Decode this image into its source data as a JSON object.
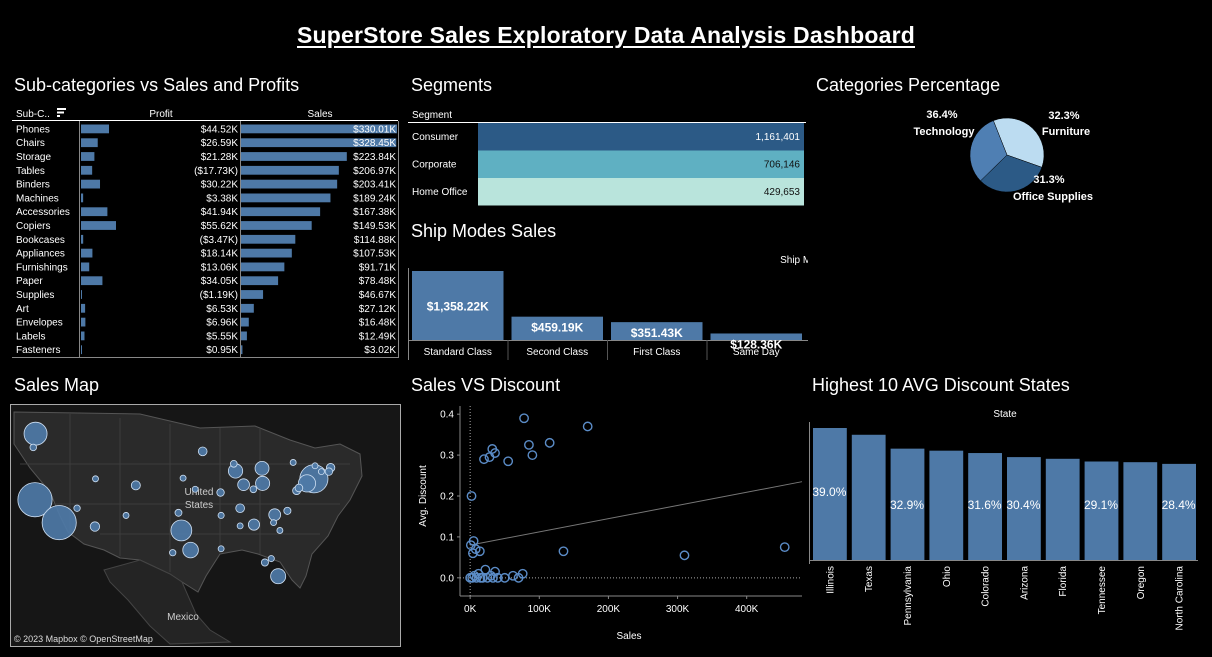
{
  "title": "SuperStore Sales Exploratory Data Analysis Dashboard",
  "panels": {
    "subcategories": "Sub-categories vs Sales and Profits",
    "segments": "Segments",
    "categories": "Categories Percentage",
    "shipmodes": "Ship Modes Sales",
    "salesmap": "Sales Map",
    "discount": "Sales VS Discount",
    "states": "Highest 10 AVG Discount States"
  },
  "colors": {
    "bar": "#4e79a7",
    "consumer": "#2c5a86",
    "corporate": "#5fb0c2",
    "home_office": "#b9e4dc",
    "pie_technology": "#bcdcf1",
    "pie_furniture": "#2c5a86",
    "pie_office": "#4f7fb3"
  },
  "map": {
    "credit": "© 2023 Mapbox  © OpenStreetMap",
    "labels": [
      "United",
      "States",
      "Mexico"
    ]
  },
  "chart_data": [
    {
      "id": "subcategories",
      "type": "bar",
      "header_col": "Sub-C..",
      "header_profit": "Profit",
      "header_sales": "Sales",
      "rows": [
        {
          "name": "Phones",
          "profit": 44.52,
          "profit_label": "$44.52K",
          "sales": 330.01,
          "sales_label": "$330.01K"
        },
        {
          "name": "Chairs",
          "profit": 26.59,
          "profit_label": "$26.59K",
          "sales": 328.45,
          "sales_label": "$328.45K"
        },
        {
          "name": "Storage",
          "profit": 21.28,
          "profit_label": "$21.28K",
          "sales": 223.84,
          "sales_label": "$223.84K"
        },
        {
          "name": "Tables",
          "profit": -17.73,
          "profit_label": "($17.73K)",
          "sales": 206.97,
          "sales_label": "$206.97K"
        },
        {
          "name": "Binders",
          "profit": 30.22,
          "profit_label": "$30.22K",
          "sales": 203.41,
          "sales_label": "$203.41K"
        },
        {
          "name": "Machines",
          "profit": 3.38,
          "profit_label": "$3.38K",
          "sales": 189.24,
          "sales_label": "$189.24K"
        },
        {
          "name": "Accessories",
          "profit": 41.94,
          "profit_label": "$41.94K",
          "sales": 167.38,
          "sales_label": "$167.38K"
        },
        {
          "name": "Copiers",
          "profit": 55.62,
          "profit_label": "$55.62K",
          "sales": 149.53,
          "sales_label": "$149.53K"
        },
        {
          "name": "Bookcases",
          "profit": -3.47,
          "profit_label": "($3.47K)",
          "sales": 114.88,
          "sales_label": "$114.88K"
        },
        {
          "name": "Appliances",
          "profit": 18.14,
          "profit_label": "$18.14K",
          "sales": 107.53,
          "sales_label": "$107.53K"
        },
        {
          "name": "Furnishings",
          "profit": 13.06,
          "profit_label": "$13.06K",
          "sales": 91.71,
          "sales_label": "$91.71K"
        },
        {
          "name": "Paper",
          "profit": 34.05,
          "profit_label": "$34.05K",
          "sales": 78.48,
          "sales_label": "$78.48K"
        },
        {
          "name": "Supplies",
          "profit": -1.19,
          "profit_label": "($1.19K)",
          "sales": 46.67,
          "sales_label": "$46.67K"
        },
        {
          "name": "Art",
          "profit": 6.53,
          "profit_label": "$6.53K",
          "sales": 27.12,
          "sales_label": "$27.12K"
        },
        {
          "name": "Envelopes",
          "profit": 6.96,
          "profit_label": "$6.96K",
          "sales": 16.48,
          "sales_label": "$16.48K"
        },
        {
          "name": "Labels",
          "profit": 5.55,
          "profit_label": "$5.55K",
          "sales": 12.49,
          "sales_label": "$12.49K"
        },
        {
          "name": "Fasteners",
          "profit": 0.95,
          "profit_label": "$0.95K",
          "sales": 3.02,
          "sales_label": "$3.02K"
        }
      ]
    },
    {
      "id": "segments",
      "type": "table",
      "header": "Segment",
      "rows": [
        {
          "name": "Consumer",
          "value": 1161401,
          "label": "1,161,401"
        },
        {
          "name": "Corporate",
          "value": 706146,
          "label": "706,146"
        },
        {
          "name": "Home Office",
          "value": 429653,
          "label": "429,653"
        }
      ]
    },
    {
      "id": "categories",
      "type": "pie",
      "slices": [
        {
          "name": "Technology",
          "value": 36.4,
          "label": "36.4%"
        },
        {
          "name": "Furniture",
          "value": 32.3,
          "label": "32.3%"
        },
        {
          "name": "Office Supplies",
          "value": 31.3,
          "label": "31.3%"
        }
      ]
    },
    {
      "id": "shipmodes",
      "type": "bar",
      "header": "Ship Mode",
      "categories": [
        "Standard Class",
        "Second Class",
        "First Class",
        "Same Day"
      ],
      "values": [
        1358.22,
        459.19,
        351.43,
        128.36
      ],
      "labels": [
        "$1,358.22K",
        "$459.19K",
        "$351.43K",
        "$128.36K"
      ]
    },
    {
      "id": "discount",
      "type": "scatter",
      "xlabel": "Sales",
      "ylabel": "Avg. Discount",
      "xlim": [
        -6000,
        480000
      ],
      "ylim": [
        -0.02,
        0.42
      ],
      "xticks": [
        0,
        100000,
        200000,
        300000,
        400000
      ],
      "xtick_labels": [
        "0K",
        "100K",
        "200K",
        "300K",
        "400K"
      ],
      "yticks": [
        0,
        0.1,
        0.2,
        0.3,
        0.4
      ],
      "ytick_labels": [
        "0.0",
        "0.1",
        "0.2",
        "0.3",
        "0.4"
      ],
      "trend": [
        [
          0,
          0.08
        ],
        [
          480000,
          0.235
        ]
      ],
      "points": [
        [
          2000,
          0.2
        ],
        [
          5000,
          0.09
        ],
        [
          1000,
          0.08
        ],
        [
          8000,
          0.07
        ],
        [
          14000,
          0.065
        ],
        [
          4000,
          0.06
        ],
        [
          20000,
          0.29
        ],
        [
          28000,
          0.295
        ],
        [
          32000,
          0.315
        ],
        [
          36000,
          0.305
        ],
        [
          55000,
          0.285
        ],
        [
          78000,
          0.39
        ],
        [
          85000,
          0.325
        ],
        [
          90000,
          0.3
        ],
        [
          115000,
          0.33
        ],
        [
          170000,
          0.37
        ],
        [
          135000,
          0.065
        ],
        [
          310000,
          0.055
        ],
        [
          455000,
          0.075
        ],
        [
          0,
          0.0
        ],
        [
          3000,
          0.0
        ],
        [
          6000,
          0.005
        ],
        [
          9000,
          0.0
        ],
        [
          12000,
          0.01
        ],
        [
          15000,
          0.0
        ],
        [
          18000,
          0.0
        ],
        [
          22000,
          0.02
        ],
        [
          25000,
          0.0
        ],
        [
          30000,
          0.005
        ],
        [
          33000,
          0.0
        ],
        [
          36000,
          0.015
        ],
        [
          40000,
          0.0
        ],
        [
          50000,
          0.0
        ],
        [
          62000,
          0.005
        ],
        [
          70000,
          0.0
        ],
        [
          76000,
          0.01
        ]
      ]
    },
    {
      "id": "states",
      "type": "bar",
      "header": "State",
      "categories": [
        "Illinois",
        "Texas",
        "Pennsylvania",
        "Ohio",
        "Colorado",
        "Arizona",
        "Florida",
        "Tennessee",
        "Oregon",
        "North Carolina"
      ],
      "values": [
        39.0,
        37.0,
        32.9,
        32.3,
        31.6,
        30.4,
        29.9,
        29.1,
        28.9,
        28.4
      ],
      "labels": [
        "39.0%",
        "",
        "32.9%",
        "",
        "31.6%",
        "30.4%",
        "",
        "29.1%",
        "",
        "28.4%"
      ]
    },
    {
      "id": "salesmap",
      "type": "scatter",
      "points": [
        {
          "lon": -122.4,
          "lat": 37.5,
          "v": 457
        },
        {
          "lon": -118.2,
          "lat": 34.0,
          "v": 457
        },
        {
          "lon": -122.3,
          "lat": 47.6,
          "v": 207
        },
        {
          "lon": -122.7,
          "lat": 45.5,
          "v": 17
        },
        {
          "lon": -112.0,
          "lat": 33.4,
          "v": 35
        },
        {
          "lon": -104.9,
          "lat": 39.7,
          "v": 32
        },
        {
          "lon": -111.9,
          "lat": 40.7,
          "v": 12
        },
        {
          "lon": -97.0,
          "lat": 32.8,
          "v": 170
        },
        {
          "lon": -95.4,
          "lat": 29.8,
          "v": 95
        },
        {
          "lon": -98.5,
          "lat": 29.4,
          "v": 16
        },
        {
          "lon": -87.6,
          "lat": 41.9,
          "v": 80
        },
        {
          "lon": -83.0,
          "lat": 42.3,
          "v": 76
        },
        {
          "lon": -82.9,
          "lat": 40.0,
          "v": 78
        },
        {
          "lon": -86.2,
          "lat": 39.8,
          "v": 54
        },
        {
          "lon": -84.5,
          "lat": 39.1,
          "v": 18
        },
        {
          "lon": -74.0,
          "lat": 40.7,
          "v": 310
        },
        {
          "lon": -75.2,
          "lat": 40.0,
          "v": 116
        },
        {
          "lon": -71.1,
          "lat": 42.4,
          "v": 28
        },
        {
          "lon": -77.0,
          "lat": 38.9,
          "v": 25
        },
        {
          "lon": -80.8,
          "lat": 35.2,
          "v": 55
        },
        {
          "lon": -78.6,
          "lat": 35.8,
          "v": 20
        },
        {
          "lon": -80.2,
          "lat": 25.8,
          "v": 89
        },
        {
          "lon": -82.5,
          "lat": 27.9,
          "v": 20
        },
        {
          "lon": -81.4,
          "lat": 28.5,
          "v": 15
        },
        {
          "lon": -84.4,
          "lat": 33.7,
          "v": 49
        },
        {
          "lon": -86.8,
          "lat": 36.2,
          "v": 30
        },
        {
          "lon": -90.1,
          "lat": 35.1,
          "v": 15
        },
        {
          "lon": -93.3,
          "lat": 44.9,
          "v": 30
        },
        {
          "lon": -87.9,
          "lat": 43.0,
          "v": 18
        },
        {
          "lon": -90.2,
          "lat": 38.6,
          "v": 22
        },
        {
          "lon": -94.6,
          "lat": 39.1,
          "v": 14
        },
        {
          "lon": -96.7,
          "lat": 40.8,
          "v": 8
        },
        {
          "lon": -97.5,
          "lat": 35.5,
          "v": 19
        },
        {
          "lon": -90.1,
          "lat": 30.0,
          "v": 9
        },
        {
          "lon": -86.8,
          "lat": 33.5,
          "v": 12
        },
        {
          "lon": -76.6,
          "lat": 39.3,
          "v": 23
        },
        {
          "lon": -73.8,
          "lat": 42.7,
          "v": 12
        },
        {
          "lon": -77.6,
          "lat": 43.2,
          "v": 10
        },
        {
          "lon": -72.7,
          "lat": 41.8,
          "v": 13
        },
        {
          "lon": -71.4,
          "lat": 41.8,
          "v": 22
        },
        {
          "lon": -79.9,
          "lat": 32.8,
          "v": 8
        },
        {
          "lon": -115.1,
          "lat": 36.2,
          "v": 16
        },
        {
          "lon": -106.6,
          "lat": 35.1,
          "v": 5
        },
        {
          "lon": -81.0,
          "lat": 34.0,
          "v": 8
        }
      ]
    }
  ]
}
